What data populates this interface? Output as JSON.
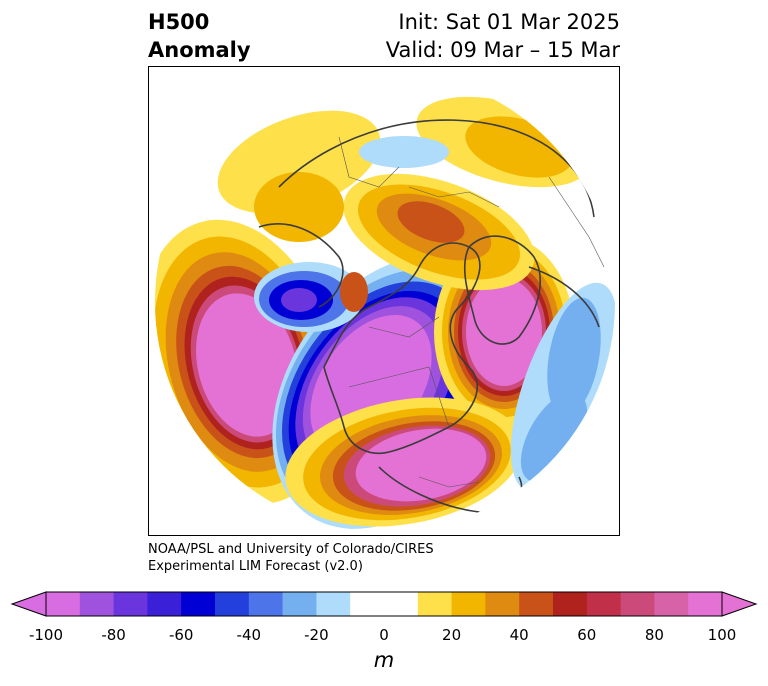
{
  "header": {
    "title_line1": "H500",
    "title_line2": "Anomaly",
    "init": "Init: Sat 01 Mar 2025",
    "valid": "Valid: 09 Mar – 15 Mar"
  },
  "credit": {
    "line1": "NOAA/PSL and University of Colorado/CIRES",
    "line2": "Experimental LIM Forecast (v2.0)"
  },
  "colorbar": {
    "colors": [
      "#d76de0",
      "#9f52de",
      "#6b35de",
      "#3a20d6",
      "#0000d4",
      "#2440dc",
      "#4d74e8",
      "#74aff0",
      "#aedcfa",
      "#ffffff",
      "#ffffff",
      "#fde04a",
      "#f2b500",
      "#df8a10",
      "#c85218",
      "#b0221e",
      "#c03048",
      "#cc4a7a",
      "#d862a8",
      "#e472d4"
    ],
    "ticks": [
      "-100",
      "-80",
      "-60",
      "-40",
      "-20",
      "0",
      "20",
      "40",
      "60",
      "80",
      "100"
    ],
    "unit": "m"
  },
  "map": {
    "projection": "north-polar-stereographic",
    "anomalies": [
      {
        "region": "North Pacific (off Alaska)",
        "sign": "positive",
        "peak_m": 100
      },
      {
        "region": "Western / Central North America",
        "sign": "negative",
        "peak_m": -100
      },
      {
        "region": "Greenland / Labrador",
        "sign": "positive",
        "peak_m": 100
      },
      {
        "region": "Western Europe / North Atlantic",
        "sign": "positive",
        "peak_m": 90
      },
      {
        "region": "Central Siberia",
        "sign": "positive",
        "peak_m": 40
      },
      {
        "region": "Eastern Siberia / Kamchatka",
        "sign": "negative",
        "peak_m": -60
      },
      {
        "region": "North Africa / Mediterranean",
        "sign": "negative",
        "peak_m": -30
      }
    ]
  }
}
